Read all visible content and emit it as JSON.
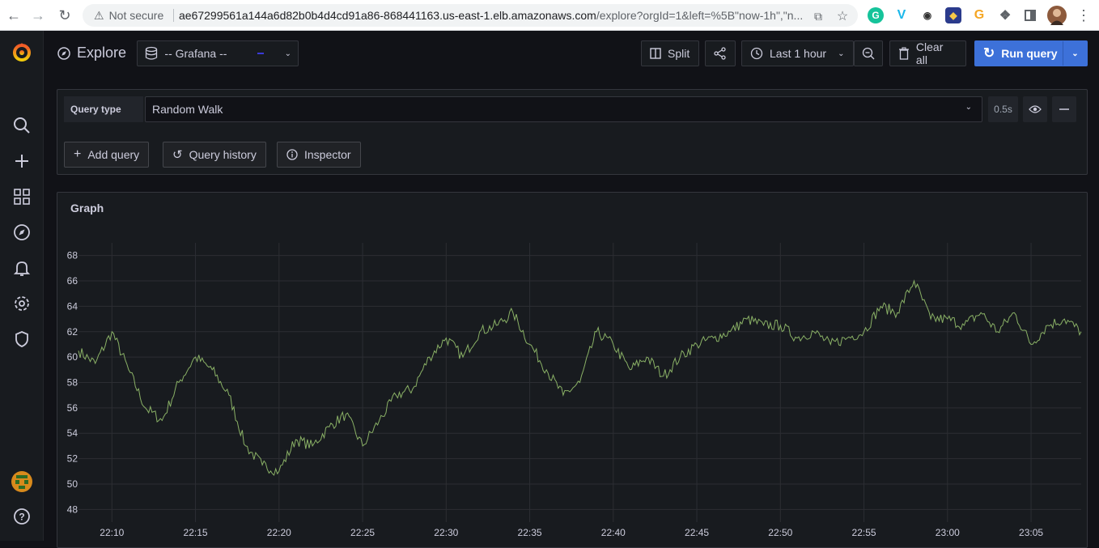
{
  "browser": {
    "security_label": "Not secure",
    "url_host": "ae67299561a144a6d82b0b4d4cd91a86-868441163.us-east-1.elb.amazonaws.com",
    "url_rest": "/explore?orgId=1&left=%5B\"now-1h\",\"n..."
  },
  "header": {
    "title": "Explore",
    "datasource": "-- Grafana --",
    "split_label": "Split",
    "time_range_label": "Last 1 hour",
    "clear_all_label": "Clear all",
    "run_query_label": "Run query"
  },
  "query": {
    "query_type_label": "Query type",
    "query_type_value": "Random Walk",
    "duration": "0.5s",
    "add_query_label": "Add query",
    "query_history_label": "Query history",
    "inspector_label": "Inspector"
  },
  "graph": {
    "title": "Graph"
  },
  "colors": {
    "series": "#8ab166",
    "run_query_bg": "#3d71d9",
    "background": "#111217",
    "panel": "#181b1f"
  },
  "chart_data": {
    "type": "line",
    "title": "",
    "xlabel": "",
    "ylabel": "",
    "x_ticks": [
      "22:10",
      "22:15",
      "22:20",
      "22:25",
      "22:30",
      "22:35",
      "22:40",
      "22:45",
      "22:50",
      "22:55",
      "23:00",
      "23:05"
    ],
    "y_ticks": [
      48,
      50,
      52,
      54,
      56,
      58,
      60,
      62,
      64,
      66,
      68
    ],
    "x_range": [
      "22:08",
      "23:08"
    ],
    "ylim": [
      47,
      69
    ],
    "grid": true,
    "legend": "none",
    "series": [
      {
        "x": [
          "22:08",
          "22:09",
          "22:10",
          "22:11",
          "22:12",
          "22:13",
          "22:14",
          "22:15",
          "22:16",
          "22:17",
          "22:18",
          "22:19",
          "22:20",
          "22:21",
          "22:22",
          "22:23",
          "22:24",
          "22:25",
          "22:26",
          "22:27",
          "22:28",
          "22:29",
          "22:30",
          "22:31",
          "22:32",
          "22:33",
          "22:34",
          "22:35",
          "22:36",
          "22:37",
          "22:38",
          "22:39",
          "22:40",
          "22:41",
          "22:42",
          "22:43",
          "22:44",
          "22:45",
          "22:46",
          "22:47",
          "22:48",
          "22:49",
          "22:50",
          "22:51",
          "22:52",
          "22:53",
          "22:54",
          "22:55",
          "22:56",
          "22:57",
          "22:58",
          "22:59",
          "23:00",
          "23:01",
          "23:02",
          "23:03",
          "23:04",
          "23:05",
          "23:06",
          "23:07",
          "23:08"
        ],
        "values": [
          60.5,
          59.5,
          62.0,
          59.0,
          56.0,
          55.0,
          58.0,
          60.0,
          59.0,
          57.0,
          53.0,
          51.5,
          51.0,
          53.5,
          53.0,
          54.5,
          55.5,
          53.0,
          55.0,
          57.0,
          57.5,
          60.0,
          61.5,
          60.0,
          62.0,
          62.5,
          63.5,
          61.0,
          59.0,
          57.0,
          58.0,
          62.0,
          61.0,
          59.0,
          60.0,
          58.5,
          60.0,
          61.0,
          61.5,
          62.0,
          63.0,
          62.5,
          62.5,
          61.5,
          62.0,
          61.0,
          61.5,
          62.0,
          64.0,
          63.5,
          66.0,
          63.0,
          63.0,
          62.5,
          63.5,
          62.0,
          63.5,
          61.0,
          62.5,
          63.0,
          62.0
        ]
      }
    ]
  }
}
